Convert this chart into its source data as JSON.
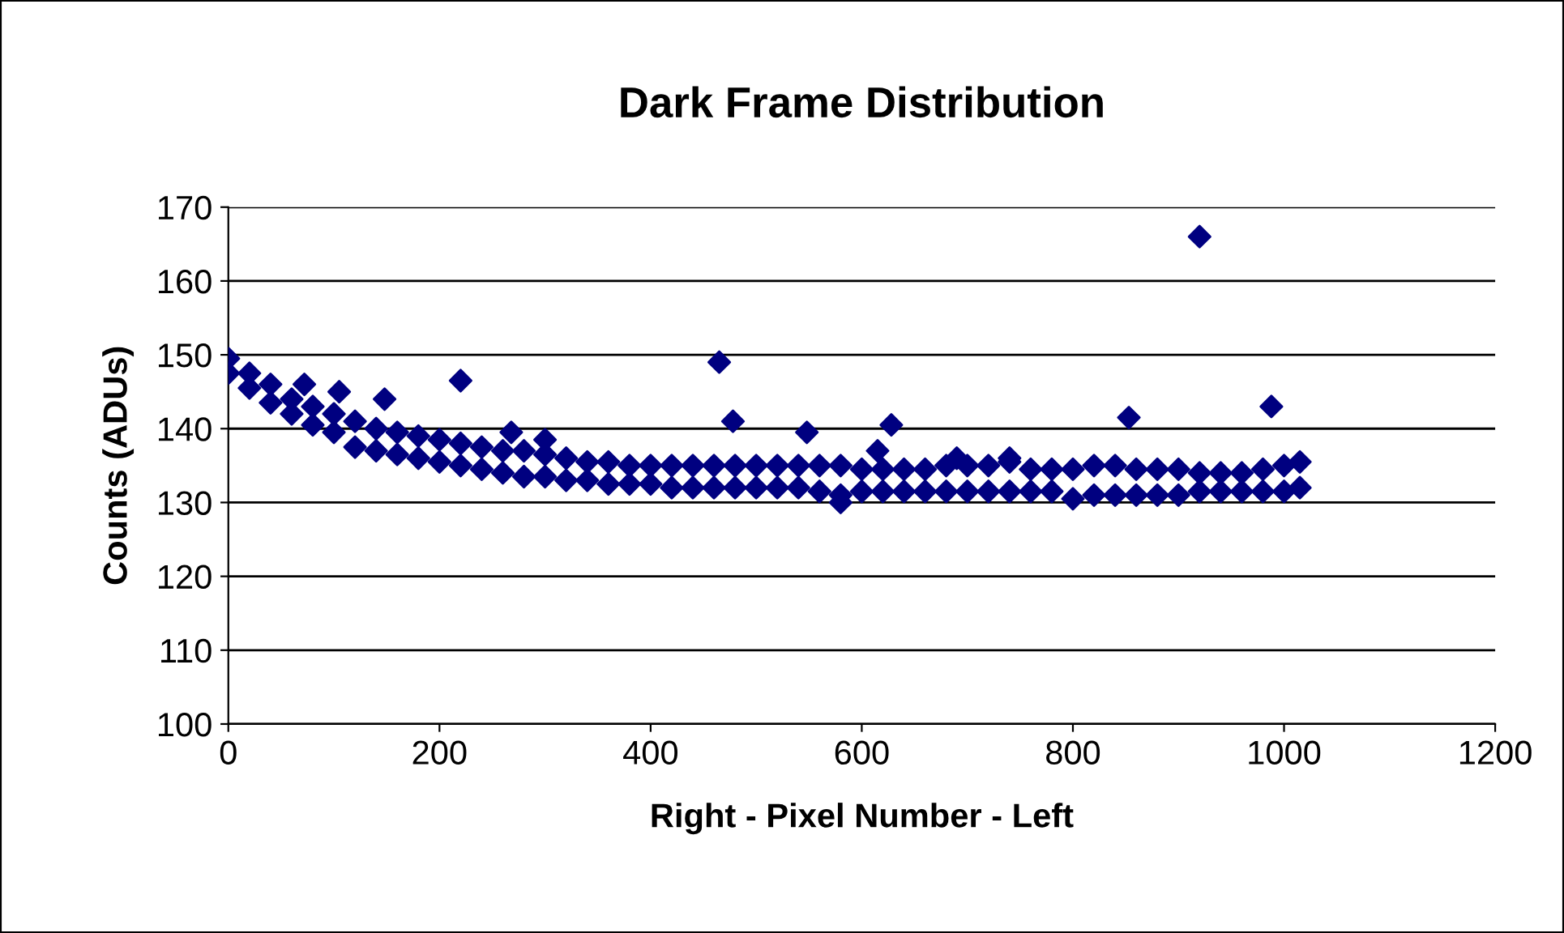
{
  "chart_data": {
    "type": "scatter",
    "title": "Dark Frame Distribution",
    "xlabel": "Right - Pixel Number - Left",
    "ylabel": "Counts (ADUs)",
    "series": [
      {
        "color": "#000080",
        "x": [
          0,
          0,
          20,
          20,
          40,
          40,
          60,
          60,
          80,
          80,
          100,
          100,
          120,
          120,
          140,
          140,
          160,
          160,
          180,
          180,
          200,
          200,
          220,
          220,
          240,
          240,
          260,
          260,
          280,
          280,
          300,
          300,
          320,
          320,
          340,
          340,
          360,
          360,
          380,
          380,
          400,
          400,
          420,
          420,
          440,
          440,
          460,
          460,
          480,
          480,
          500,
          500,
          520,
          520,
          540,
          540,
          560,
          560,
          580,
          580,
          600,
          600,
          620,
          620,
          640,
          640,
          660,
          660,
          680,
          680,
          700,
          700,
          720,
          720,
          740,
          740,
          760,
          760,
          780,
          780,
          800,
          800,
          820,
          820,
          840,
          840,
          860,
          860,
          880,
          880,
          900,
          900,
          920,
          920,
          940,
          940,
          960,
          960,
          980,
          980,
          1000,
          1000,
          1015,
          1015,
          220,
          465,
          478,
          548,
          615,
          628,
          853,
          920,
          988,
          72,
          105,
          148,
          268,
          300,
          580,
          740,
          690
        ],
        "values": [
          149.5,
          147.5,
          147.5,
          145.5,
          146,
          143.5,
          144,
          142,
          143,
          140.5,
          142,
          139.5,
          141,
          137.5,
          140,
          137,
          139.5,
          136.5,
          139,
          136,
          138.5,
          135.5,
          138,
          135,
          137.5,
          134.5,
          137,
          134,
          137,
          133.5,
          136.5,
          133.5,
          136,
          133,
          135.5,
          133,
          135.5,
          132.5,
          135,
          132.5,
          135,
          132.5,
          135,
          132,
          135,
          132,
          135,
          132,
          135,
          132,
          135,
          132,
          135,
          132,
          135,
          132,
          135,
          131.5,
          135,
          131,
          134.5,
          131.5,
          134.5,
          131.5,
          134.5,
          131.5,
          134.5,
          131.5,
          135,
          131.5,
          135,
          131.5,
          135,
          131.5,
          135.5,
          131.5,
          134.5,
          131.5,
          134.5,
          131.5,
          134.5,
          130.5,
          135,
          131,
          135,
          131,
          134.5,
          131,
          134.5,
          131,
          134.5,
          131,
          134,
          131.5,
          134,
          131.5,
          134,
          131.5,
          134.5,
          131.5,
          135,
          131.5,
          135.5,
          132,
          146.5,
          149,
          141,
          139.5,
          137,
          140.5,
          141.5,
          166,
          143,
          146,
          145,
          144,
          139.5,
          138.5,
          130,
          136,
          136
        ]
      }
    ],
    "xlim": [
      0,
      1200
    ],
    "xticks": [
      0,
      200,
      400,
      600,
      800,
      1000,
      1200
    ],
    "ylim": [
      100,
      170
    ],
    "yticks": [
      100,
      110,
      120,
      130,
      140,
      150,
      160,
      170
    ],
    "grid": "y",
    "legend": false,
    "marker": "diamond"
  }
}
